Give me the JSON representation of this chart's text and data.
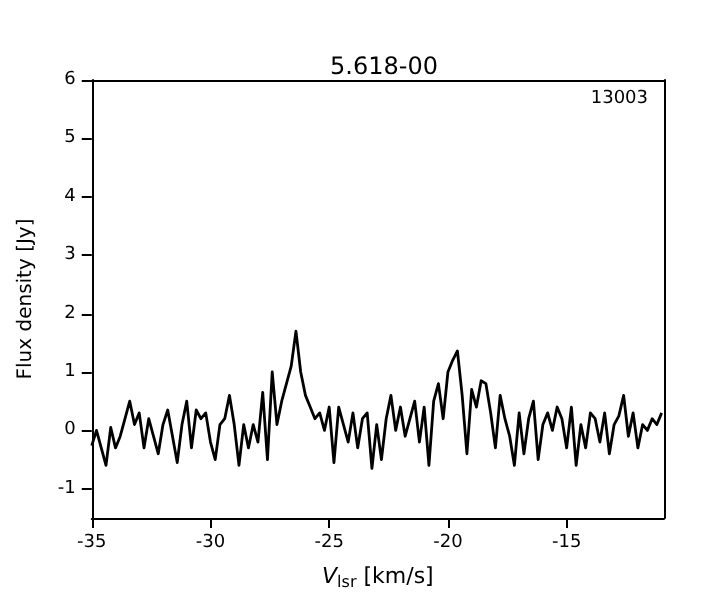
{
  "chart_data": {
    "type": "line",
    "title": "5.618-00",
    "xlabel": "V$_{lsr}$ [km/s]",
    "ylabel": "Flux density [Jy]",
    "annotations": [
      "13003"
    ],
    "x": [
      -35.0,
      -34.8,
      -34.6,
      -34.4,
      -34.2,
      -34.0,
      -33.8,
      -33.6,
      -33.4,
      -33.2,
      -33.0,
      -32.8,
      -32.6,
      -32.4,
      -32.2,
      -32.0,
      -31.8,
      -31.6,
      -31.4,
      -31.2,
      -31.0,
      -30.8,
      -30.6,
      -30.4,
      -30.2,
      -30.0,
      -29.8,
      -29.6,
      -29.4,
      -29.2,
      -29.0,
      -28.8,
      -28.6,
      -28.4,
      -28.2,
      -28.0,
      -27.8,
      -27.6,
      -27.4,
      -27.2,
      -27.0,
      -26.8,
      -26.6,
      -26.4,
      -26.2,
      -26.0,
      -25.8,
      -25.6,
      -25.4,
      -25.2,
      -25.0,
      -24.8,
      -24.6,
      -24.4,
      -24.2,
      -24.0,
      -23.8,
      -23.6,
      -23.4,
      -23.2,
      -23.0,
      -22.8,
      -22.6,
      -22.4,
      -22.2,
      -22.0,
      -21.8,
      -21.6,
      -21.4,
      -21.2,
      -21.0,
      -20.8,
      -20.6,
      -20.4,
      -20.2,
      -20.0,
      -19.8,
      -19.6,
      -19.4,
      -19.2,
      -19.0,
      -18.8,
      -18.6,
      -18.4,
      -18.2,
      -18.0,
      -17.8,
      -17.6,
      -17.4,
      -17.2,
      -17.0,
      -16.8,
      -16.6,
      -16.4,
      -16.2,
      -16.0,
      -15.8,
      -15.6,
      -15.4,
      -15.2,
      -15.0,
      -14.8,
      -14.6,
      -14.4,
      -14.2,
      -14.0,
      -13.8,
      -13.6,
      -13.4,
      -13.2,
      -13.0,
      -12.8,
      -12.6,
      -12.4,
      -12.2,
      -12.0,
      -11.8,
      -11.6,
      -11.4,
      -11.2,
      -11.0
    ],
    "series": [
      {
        "color": "#000000",
        "values": [
          -0.26,
          0.0,
          -0.3,
          -0.6,
          0.05,
          -0.3,
          -0.1,
          0.2,
          0.5,
          0.1,
          0.3,
          -0.3,
          0.2,
          -0.1,
          -0.4,
          0.1,
          0.35,
          -0.1,
          -0.55,
          0.1,
          0.5,
          -0.3,
          0.35,
          0.2,
          0.3,
          -0.2,
          -0.5,
          0.1,
          0.2,
          0.6,
          0.1,
          -0.6,
          0.1,
          -0.3,
          0.1,
          -0.2,
          0.65,
          -0.5,
          1.0,
          0.1,
          0.5,
          0.8,
          1.1,
          1.7,
          1.0,
          0.6,
          0.4,
          0.2,
          0.3,
          0.0,
          0.4,
          -0.55,
          0.4,
          0.1,
          -0.2,
          0.3,
          -0.3,
          0.2,
          0.3,
          -0.65,
          0.1,
          -0.5,
          0.2,
          0.6,
          0.0,
          0.4,
          -0.1,
          0.2,
          0.5,
          -0.2,
          0.4,
          -0.6,
          0.5,
          0.8,
          0.2,
          1.0,
          1.2,
          1.36,
          0.6,
          -0.4,
          0.7,
          0.4,
          0.85,
          0.8,
          0.3,
          -0.3,
          0.6,
          0.2,
          -0.1,
          -0.6,
          0.3,
          -0.4,
          0.2,
          0.5,
          -0.5,
          0.1,
          0.3,
          0.0,
          0.4,
          0.2,
          -0.3,
          0.4,
          -0.6,
          0.1,
          -0.3,
          0.3,
          0.2,
          -0.2,
          0.3,
          -0.4,
          0.1,
          0.25,
          0.6,
          -0.1,
          0.3,
          -0.3,
          0.1,
          0.0,
          0.2,
          0.1,
          0.3
        ]
      }
    ],
    "xlim": [
      -35,
      -10.9
    ],
    "xticks": [
      -35,
      -30,
      -25,
      -20,
      -15
    ],
    "ylim": [
      -1.5,
      6
    ],
    "yticks": [
      -1,
      0,
      1,
      2,
      3,
      4,
      5,
      6
    ],
    "grid": false,
    "marker": "none",
    "line_style": "solid"
  }
}
